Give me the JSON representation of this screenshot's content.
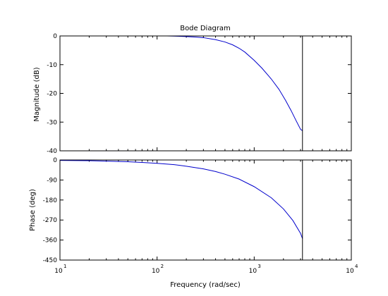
{
  "chart_data": {
    "type": "line",
    "title": "Bode Diagram",
    "xlabel": "Frequency  (rad/sec)",
    "xscale": "log",
    "xlim": [
      10,
      10000
    ],
    "x_ticks": [
      {
        "base": "10",
        "exp": "1",
        "value": 10
      },
      {
        "base": "10",
        "exp": "2",
        "value": 100
      },
      {
        "base": "10",
        "exp": "3",
        "value": 1000
      },
      {
        "base": "10",
        "exp": "4",
        "value": 10000
      }
    ],
    "nyquist_line_x": 3141.6,
    "grid": false,
    "panels": [
      {
        "id": "magnitude",
        "ylabel": "Magnitude (dB)",
        "ylim": [
          -40,
          0
        ],
        "yticks": [
          0,
          -10,
          -20,
          -30,
          -40
        ],
        "ytick_labels": [
          "0",
          "-10",
          "-20",
          "-30",
          "-40"
        ],
        "series": [
          {
            "color": "#0000cc",
            "x": [
              126,
              150,
              200,
              250,
              300,
              400,
              500,
              600,
              700,
              800,
              1000,
              1200,
              1500,
              1800,
              2100,
              2400,
              2700,
              3000,
              3140
            ],
            "y": [
              0,
              -0.05,
              -0.2,
              -0.4,
              -0.6,
              -1.3,
              -2.1,
              -3.1,
              -4.3,
              -5.6,
              -8.5,
              -11.2,
              -15.0,
              -18.6,
              -22.4,
              -26.0,
              -29.5,
              -32.5,
              -33.0
            ]
          }
        ]
      },
      {
        "id": "phase",
        "ylabel": "Phase (deg)",
        "ylim": [
          -450,
          0
        ],
        "yticks": [
          0,
          -90,
          -180,
          -270,
          -360,
          -450
        ],
        "ytick_labels": [
          "0",
          "-90",
          "-180",
          "-270",
          "-360",
          "-450"
        ],
        "series": [
          {
            "color": "#0000cc",
            "x": [
              10,
              20,
              30,
              50,
              70,
              100,
              150,
              200,
              300,
              400,
              500,
              700,
              1000,
              1500,
              2000,
              2500,
              3000,
              3140
            ],
            "y": [
              -2,
              -3,
              -5,
              -8,
              -11,
              -15,
              -21,
              -28,
              -40,
              -52,
              -64,
              -86,
              -120,
              -170,
              -220,
              -272,
              -330,
              -353
            ]
          }
        ]
      }
    ]
  },
  "colors": {
    "background": "#ffffff",
    "axes": "#000000",
    "series": "#0000cc"
  }
}
